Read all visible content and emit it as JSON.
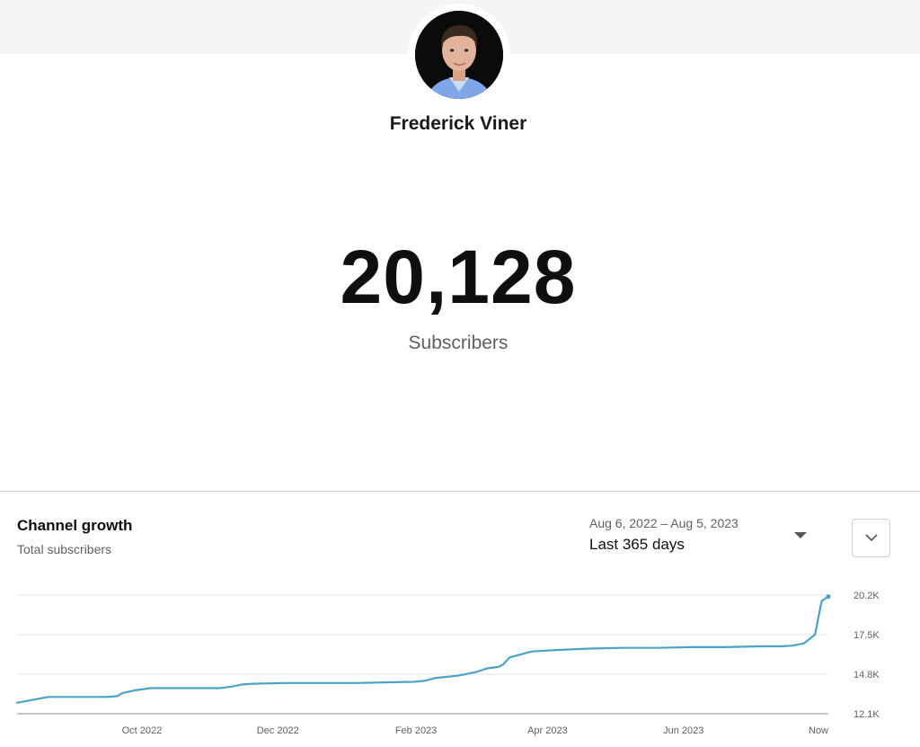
{
  "channel": {
    "name": "Frederick Viner",
    "avatar": "channel-avatar-photo"
  },
  "subscribers": {
    "count": "20,128",
    "label": "Subscribers"
  },
  "growth": {
    "title": "Channel growth",
    "subtitle": "Total subscribers",
    "date_range": "Aug 6, 2022 – Aug 5, 2023",
    "range_label": "Last 365 days",
    "dropdown_icon": "caret-down-icon",
    "expand_icon": "chevron-down-icon"
  },
  "colors": {
    "line": "#4aa3c4",
    "grid": "#e5e5e5",
    "axis": "#b5b5b5"
  },
  "chart_data": {
    "type": "line",
    "title": "",
    "xlabel": "",
    "ylabel": "",
    "x_tick_labels": [
      "Oct 2022",
      "Dec 2022",
      "Feb 2023",
      "Apr 2023",
      "Jun 2023",
      "Now"
    ],
    "x_ticks": [
      "2022-10-01",
      "2022-12-01",
      "2023-02-01",
      "2023-04-01",
      "2023-06-01",
      "2023-08-05"
    ],
    "y_tick_labels": [
      "12.1K",
      "14.8K",
      "17.5K",
      "20.2K"
    ],
    "y_ticks": [
      12100,
      14800,
      17500,
      20200
    ],
    "ylim": [
      12100,
      20200
    ],
    "xlim": [
      "2022-08-06",
      "2023-08-05"
    ],
    "grid": true,
    "series": [
      {
        "x": [
          "2022-08-06",
          "2022-08-20",
          "2022-09-05",
          "2022-09-15",
          "2022-09-20",
          "2022-09-22",
          "2022-09-28",
          "2022-10-05",
          "2022-10-20",
          "2022-11-05",
          "2022-11-10",
          "2022-11-15",
          "2022-11-20",
          "2022-12-05",
          "2022-12-20",
          "2023-01-05",
          "2023-01-20",
          "2023-01-31",
          "2023-02-05",
          "2023-02-10",
          "2023-02-20",
          "2023-02-28",
          "2023-03-05",
          "2023-03-10",
          "2023-03-12",
          "2023-03-15",
          "2023-03-25",
          "2023-04-05",
          "2023-04-20",
          "2023-05-05",
          "2023-05-20",
          "2023-06-05",
          "2023-06-20",
          "2023-07-05",
          "2023-07-15",
          "2023-07-20",
          "2023-07-25",
          "2023-07-30",
          "2023-08-02",
          "2023-08-05"
        ],
        "values": [
          12850,
          13250,
          13250,
          13250,
          13300,
          13500,
          13700,
          13850,
          13850,
          13850,
          13950,
          14100,
          14150,
          14200,
          14200,
          14200,
          14250,
          14280,
          14350,
          14550,
          14700,
          14950,
          15200,
          15300,
          15450,
          15950,
          16350,
          16450,
          16550,
          16600,
          16600,
          16650,
          16650,
          16700,
          16700,
          16750,
          16900,
          17500,
          19800,
          20100
        ]
      }
    ]
  }
}
